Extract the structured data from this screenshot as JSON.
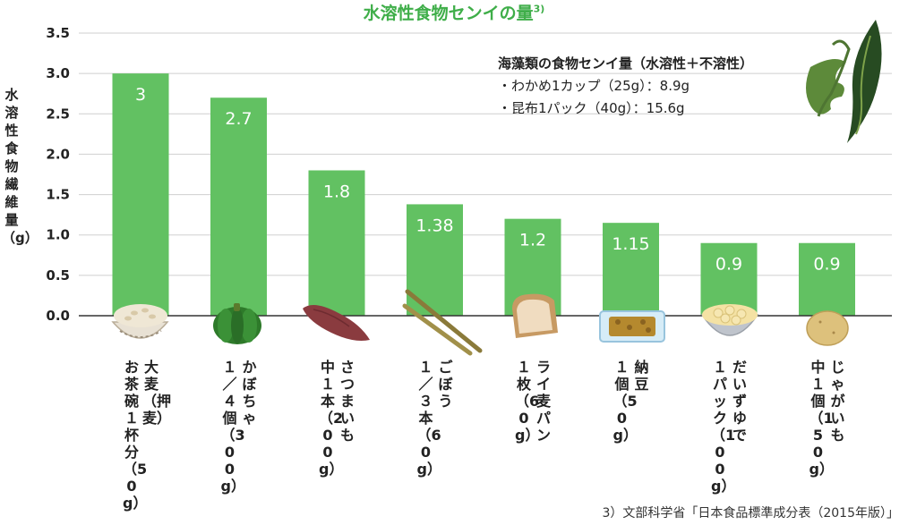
{
  "chart_data": {
    "type": "bar",
    "title": "水溶性食物センイの量",
    "title_ref": "3)",
    "ylabel": "水溶性食物繊維量（g）",
    "ylim": [
      0,
      3.5
    ],
    "yticks": [
      "0.0",
      "0.5",
      "1.0",
      "1.5",
      "2.0",
      "2.5",
      "3.0",
      "3.5"
    ],
    "grid": true,
    "bar_color": "#62c162",
    "axis_color": "#333333",
    "categories": [
      {
        "lines": [
          "大麦（押麦）",
          "お茶碗１杯分（50g）"
        ],
        "icon": "barley-bowl-icon"
      },
      {
        "lines": [
          "かぼちゃ",
          "１／４個（300g）"
        ],
        "icon": "pumpkin-icon"
      },
      {
        "lines": [
          "さつまいも",
          "中１本（200g）"
        ],
        "icon": "sweet-potato-icon"
      },
      {
        "lines": [
          "ごぼう",
          "１／３本（60g）"
        ],
        "icon": "burdock-icon"
      },
      {
        "lines": [
          "ライ麦パン",
          "１枚（60g）"
        ],
        "icon": "rye-bread-icon"
      },
      {
        "lines": [
          "納豆",
          "１個（50g）"
        ],
        "icon": "natto-icon"
      },
      {
        "lines": [
          "だいずゆで",
          "１パック（100g）"
        ],
        "icon": "boiled-soybeans-icon"
      },
      {
        "lines": [
          "じゃがいも",
          "中１個（150g）"
        ],
        "icon": "potato-icon"
      }
    ],
    "values": [
      3,
      2.7,
      1.8,
      1.38,
      1.2,
      1.15,
      0.9,
      0.9
    ],
    "value_labels": [
      "3",
      "2.7",
      "1.8",
      "1.38",
      "1.2",
      "1.15",
      "0.9",
      "0.9"
    ]
  },
  "note": {
    "heading": "海藻類の食物センイ量（水溶性＋不溶性）",
    "items": [
      "・わかめ1カップ（25g）：8.9g",
      "・昆布1パック（40g）：15.6g"
    ],
    "icon": "seaweed-icon"
  },
  "footnote": "3）文部科学省「日本食品標準成分表（2015年版）」"
}
